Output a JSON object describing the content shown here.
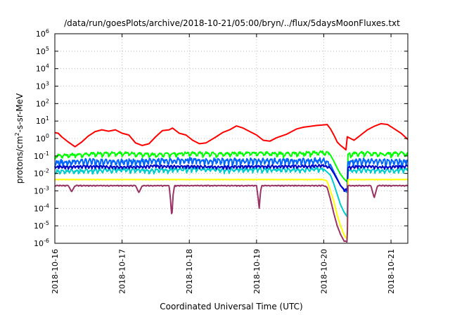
{
  "chart_data": {
    "type": "line",
    "title": "/data/run/goesPlots/archive/2018-10-21/05:00/bryn/../flux/5daysMoonFluxes.txt",
    "xlabel": "Coordinated Universal Time (UTC)",
    "ylabel": {
      "base": "protons/cm",
      "sup": "2",
      "rest": "-s-sr-MeV"
    },
    "xlim": [
      0,
      5.25
    ],
    "x_ticks": [
      {
        "x": 0,
        "label": "2018-10-16"
      },
      {
        "x": 1,
        "label": "2018-10-17"
      },
      {
        "x": 2,
        "label": "2018-10-18"
      },
      {
        "x": 3,
        "label": "2018-10-19"
      },
      {
        "x": 4,
        "label": "2018-10-20"
      },
      {
        "x": 5,
        "label": "2018-10-21"
      }
    ],
    "ylim_exp": [
      -6,
      6
    ],
    "y_scale": "log",
    "y_ticks": [
      {
        "exp": -6,
        "base": "10",
        "sup": "-6"
      },
      {
        "exp": -5,
        "base": "10",
        "sup": "-5"
      },
      {
        "exp": -4,
        "base": "10",
        "sup": "-4"
      },
      {
        "exp": -3,
        "base": "10",
        "sup": "-3"
      },
      {
        "exp": -2,
        "base": "10",
        "sup": "-2"
      },
      {
        "exp": -1,
        "base": "10",
        "sup": "-1"
      },
      {
        "exp": 0,
        "base": "10",
        "sup": "0"
      },
      {
        "exp": 1,
        "base": "10",
        "sup": "1"
      },
      {
        "exp": 2,
        "base": "10",
        "sup": "2"
      },
      {
        "exp": 3,
        "base": "10",
        "sup": "3"
      },
      {
        "exp": 4,
        "base": "10",
        "sup": "4"
      },
      {
        "exp": 5,
        "base": "10",
        "sup": "5"
      },
      {
        "exp": 6,
        "base": "10",
        "sup": "6"
      }
    ],
    "grid": true,
    "series": [
      {
        "color": "#ff0000",
        "points": [
          [
            0,
            0.34
          ],
          [
            0.05,
            0.3
          ],
          [
            0.1,
            0.1
          ],
          [
            0.2,
            -0.2
          ],
          [
            0.3,
            -0.47
          ],
          [
            0.4,
            -0.2
          ],
          [
            0.5,
            0.15
          ],
          [
            0.6,
            0.4
          ],
          [
            0.7,
            0.5
          ],
          [
            0.8,
            0.42
          ],
          [
            0.9,
            0.5
          ],
          [
            1.0,
            0.3
          ],
          [
            1.1,
            0.2
          ],
          [
            1.2,
            -0.25
          ],
          [
            1.3,
            -0.4
          ],
          [
            1.4,
            -0.3
          ],
          [
            1.5,
            0.1
          ],
          [
            1.6,
            0.45
          ],
          [
            1.7,
            0.5
          ],
          [
            1.75,
            0.6
          ],
          [
            1.85,
            0.3
          ],
          [
            1.95,
            0.2
          ],
          [
            2.05,
            -0.1
          ],
          [
            2.15,
            -0.3
          ],
          [
            2.25,
            -0.25
          ],
          [
            2.4,
            0.1
          ],
          [
            2.5,
            0.35
          ],
          [
            2.6,
            0.5
          ],
          [
            2.7,
            0.72
          ],
          [
            2.8,
            0.6
          ],
          [
            2.9,
            0.4
          ],
          [
            3.0,
            0.2
          ],
          [
            3.1,
            -0.1
          ],
          [
            3.2,
            -0.15
          ],
          [
            3.3,
            0.05
          ],
          [
            3.45,
            0.25
          ],
          [
            3.6,
            0.55
          ],
          [
            3.7,
            0.65
          ],
          [
            3.8,
            0.7
          ],
          [
            3.9,
            0.75
          ],
          [
            4.0,
            0.78
          ],
          [
            4.05,
            0.8
          ],
          [
            4.1,
            0.55
          ],
          [
            4.15,
            0.2
          ],
          [
            4.2,
            -0.2
          ],
          [
            4.25,
            -0.4
          ],
          [
            4.3,
            -0.55
          ],
          [
            4.33,
            -0.65
          ],
          [
            4.35,
            0.1
          ],
          [
            4.45,
            -0.1
          ],
          [
            4.55,
            0.2
          ],
          [
            4.65,
            0.5
          ],
          [
            4.75,
            0.7
          ],
          [
            4.85,
            0.85
          ],
          [
            4.95,
            0.8
          ],
          [
            5.05,
            0.55
          ],
          [
            5.15,
            0.3
          ],
          [
            5.25,
            -0.05
          ]
        ]
      },
      {
        "color": "#00ff00",
        "points": [
          [
            0,
            -1.0
          ],
          [
            0.5,
            -0.9
          ],
          [
            1.0,
            -0.85
          ],
          [
            1.5,
            -0.95
          ],
          [
            2.0,
            -0.85
          ],
          [
            2.5,
            -0.9
          ],
          [
            3.0,
            -0.85
          ],
          [
            3.5,
            -0.9
          ],
          [
            3.8,
            -0.85
          ],
          [
            4.0,
            -0.8
          ],
          [
            4.1,
            -0.95
          ],
          [
            4.15,
            -1.3
          ],
          [
            4.2,
            -1.7
          ],
          [
            4.25,
            -2.05
          ],
          [
            4.3,
            -2.3
          ],
          [
            4.35,
            -2.5
          ],
          [
            4.36,
            -0.9
          ],
          [
            4.6,
            -0.85
          ],
          [
            4.9,
            -0.9
          ],
          [
            5.2,
            -0.85
          ],
          [
            5.25,
            -0.9
          ]
        ],
        "noise": 0.15,
        "period": 0.1
      },
      {
        "color": "#0066ff",
        "points": [
          [
            0,
            -1.4
          ],
          [
            0.5,
            -1.3
          ],
          [
            1.0,
            -1.35
          ],
          [
            1.5,
            -1.3
          ],
          [
            2.0,
            -1.25
          ],
          [
            2.5,
            -1.3
          ],
          [
            3.0,
            -1.3
          ],
          [
            3.5,
            -1.3
          ],
          [
            3.8,
            -1.3
          ],
          [
            4.0,
            -1.25
          ],
          [
            4.1,
            -1.5
          ],
          [
            4.15,
            -1.9
          ],
          [
            4.2,
            -2.3
          ],
          [
            4.25,
            -2.7
          ],
          [
            4.3,
            -2.95
          ],
          [
            4.35,
            -3.1
          ],
          [
            4.36,
            -1.35
          ],
          [
            4.6,
            -1.3
          ],
          [
            4.9,
            -1.3
          ],
          [
            5.2,
            -1.35
          ],
          [
            5.25,
            -1.3
          ]
        ],
        "noise": 0.22,
        "period": 0.06
      },
      {
        "color": "#00cccc",
        "points": [
          [
            0,
            -1.9
          ],
          [
            0.5,
            -1.85
          ],
          [
            1.0,
            -1.8
          ],
          [
            1.5,
            -1.85
          ],
          [
            2.0,
            -1.75
          ],
          [
            2.5,
            -1.8
          ],
          [
            3.0,
            -1.8
          ],
          [
            3.5,
            -1.8
          ],
          [
            3.8,
            -1.8
          ],
          [
            4.0,
            -1.75
          ],
          [
            4.1,
            -2.1
          ],
          [
            4.15,
            -2.6
          ],
          [
            4.2,
            -3.2
          ],
          [
            4.25,
            -3.8
          ],
          [
            4.3,
            -4.2
          ],
          [
            4.35,
            -4.5
          ],
          [
            4.36,
            -1.85
          ],
          [
            4.6,
            -1.8
          ],
          [
            4.9,
            -1.85
          ],
          [
            5.2,
            -1.8
          ],
          [
            5.25,
            -1.8
          ]
        ],
        "noise": 0.15,
        "period": 0.07
      },
      {
        "color": "#0000cc",
        "points": [
          [
            0,
            -1.65
          ],
          [
            0.5,
            -1.6
          ],
          [
            1.0,
            -1.65
          ],
          [
            1.5,
            -1.6
          ],
          [
            2.0,
            -1.6
          ],
          [
            2.5,
            -1.65
          ],
          [
            3.0,
            -1.6
          ],
          [
            3.5,
            -1.6
          ],
          [
            3.8,
            -1.6
          ],
          [
            4.0,
            -1.55
          ],
          [
            4.1,
            -1.7
          ],
          [
            4.15,
            -2.0
          ],
          [
            4.2,
            -2.35
          ],
          [
            4.25,
            -2.7
          ],
          [
            4.3,
            -2.9
          ],
          [
            4.35,
            -3.0
          ],
          [
            4.36,
            -1.65
          ],
          [
            4.6,
            -1.6
          ],
          [
            4.9,
            -1.65
          ],
          [
            5.2,
            -1.6
          ],
          [
            5.25,
            -1.6
          ]
        ],
        "noise": 0.1,
        "period": 0.05
      },
      {
        "color": "#ffff00",
        "points": [
          [
            0,
            -2.35
          ],
          [
            0.5,
            -2.35
          ],
          [
            1.0,
            -2.35
          ],
          [
            1.5,
            -2.35
          ],
          [
            2.0,
            -2.35
          ],
          [
            2.5,
            -2.35
          ],
          [
            3.0,
            -2.35
          ],
          [
            3.5,
            -2.35
          ],
          [
            3.8,
            -2.35
          ],
          [
            4.0,
            -2.35
          ],
          [
            4.05,
            -2.45
          ],
          [
            4.1,
            -3.0
          ],
          [
            4.15,
            -3.6
          ],
          [
            4.2,
            -4.4
          ],
          [
            4.25,
            -5.0
          ],
          [
            4.3,
            -5.5
          ],
          [
            4.35,
            -5.8
          ],
          [
            4.36,
            -2.35
          ],
          [
            4.6,
            -2.35
          ],
          [
            4.9,
            -2.35
          ],
          [
            5.2,
            -2.35
          ],
          [
            5.25,
            -2.35
          ]
        ],
        "noise": 0.02,
        "period": 0.05
      },
      {
        "color": "#993366",
        "points": [
          [
            0,
            -2.7
          ],
          [
            0.2,
            -2.7
          ],
          [
            0.25,
            -3.05
          ],
          [
            0.3,
            -2.7
          ],
          [
            0.5,
            -2.7
          ],
          [
            1.0,
            -2.7
          ],
          [
            1.2,
            -2.7
          ],
          [
            1.25,
            -3.1
          ],
          [
            1.3,
            -2.7
          ],
          [
            1.5,
            -2.7
          ],
          [
            1.7,
            -2.7
          ],
          [
            1.72,
            -3.5
          ],
          [
            1.74,
            -4.5
          ],
          [
            1.76,
            -3.2
          ],
          [
            1.78,
            -2.7
          ],
          [
            2.0,
            -2.7
          ],
          [
            3.0,
            -2.7
          ],
          [
            3.02,
            -3.3
          ],
          [
            3.04,
            -4.0
          ],
          [
            3.06,
            -3.0
          ],
          [
            3.08,
            -2.7
          ],
          [
            3.5,
            -2.7
          ],
          [
            4.0,
            -2.7
          ],
          [
            4.05,
            -2.8
          ],
          [
            4.1,
            -3.5
          ],
          [
            4.15,
            -4.3
          ],
          [
            4.2,
            -5.0
          ],
          [
            4.25,
            -5.5
          ],
          [
            4.3,
            -5.85
          ],
          [
            4.35,
            -5.95
          ],
          [
            4.36,
            -2.7
          ],
          [
            4.7,
            -2.7
          ],
          [
            4.75,
            -3.4
          ],
          [
            4.8,
            -2.7
          ],
          [
            5.0,
            -2.7
          ],
          [
            5.25,
            -2.7
          ]
        ],
        "noise": 0.03,
        "period": 0.05
      }
    ]
  }
}
